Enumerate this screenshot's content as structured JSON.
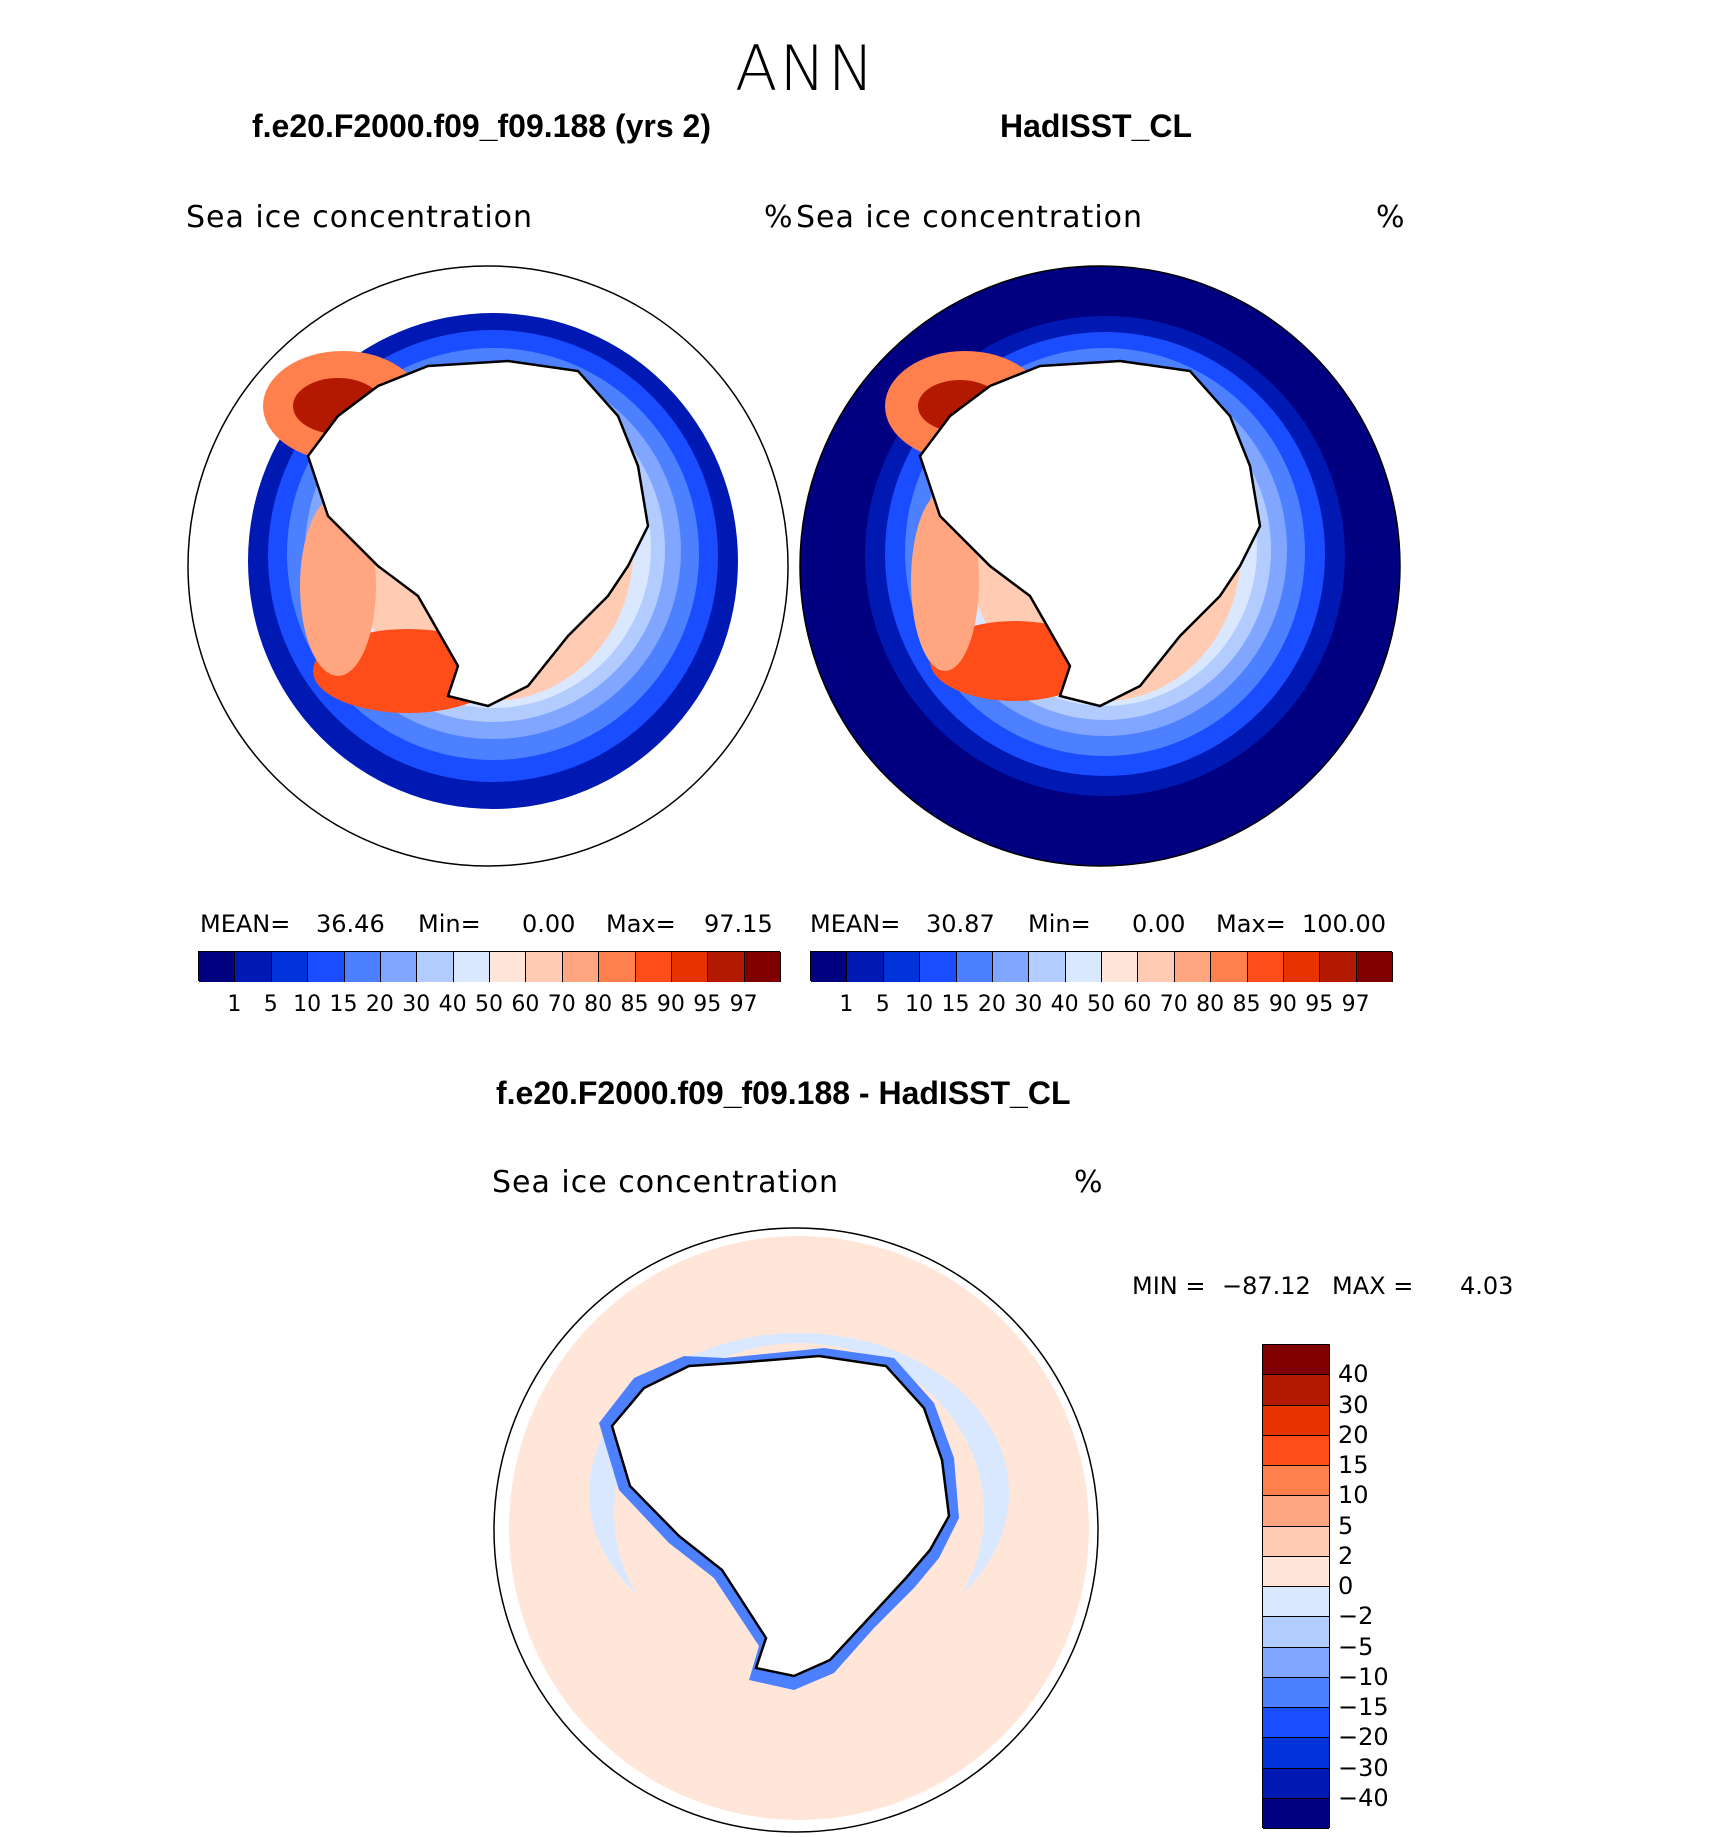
{
  "figure": {
    "season": "ANN",
    "colors": {
      "seq": [
        "#000080",
        "#0019b3",
        "#0033d9",
        "#1a4dff",
        "#4d80ff",
        "#80a6ff",
        "#b3ccff",
        "#d9e8ff",
        "#ffe6d9",
        "#ffccb3",
        "#ffa680",
        "#ff7f4d",
        "#ff4d1a",
        "#e63300",
        "#b31900",
        "#800000"
      ],
      "diff": [
        "#000080",
        "#0019b3",
        "#0033d9",
        "#1a4dff",
        "#4d80ff",
        "#80a6ff",
        "#b3ccff",
        "#d9e8ff",
        "#ffe6d9",
        "#ffccb3",
        "#ffa680",
        "#ff7f4d",
        "#ff4d1a",
        "#e63300",
        "#b31900",
        "#800000"
      ],
      "land": "#ffffff",
      "ocean_nodata": "#ffffff"
    }
  },
  "panels": [
    {
      "id": "model",
      "title": "f.e20.F2000.f09_f09.188 (yrs 2)",
      "variable": "Sea ice concentration",
      "units": "%",
      "stats": {
        "mean_label": "MEAN=",
        "mean": "36.46",
        "min_label": "Min=",
        "min": "0.00",
        "max_label": "Max=",
        "max": "97.15"
      }
    },
    {
      "id": "obs",
      "title": "HadISST_CL",
      "variable": "Sea ice concentration",
      "units": "%",
      "stats": {
        "mean_label": "MEAN=",
        "mean": "30.87",
        "min_label": "Min=",
        "min": "0.00",
        "max_label": "Max=",
        "max": "100.00"
      }
    },
    {
      "id": "diff",
      "title": "f.e20.F2000.f09_f09.188 - HadISST_CL",
      "variable": "Sea ice concentration",
      "units": "%",
      "stats": {
        "min_label": "MIN =",
        "min": "−87.12",
        "max_label": "MAX =",
        "max": "4.03"
      }
    }
  ],
  "colorbar_seq": {
    "ticks": [
      "1",
      "5",
      "10",
      "15",
      "20",
      "30",
      "40",
      "50",
      "60",
      "70",
      "80",
      "85",
      "90",
      "95",
      "97"
    ]
  },
  "colorbar_diff": {
    "ticks": [
      "40",
      "30",
      "20",
      "15",
      "10",
      "5",
      "2",
      "0",
      "−2",
      "−5",
      "−10",
      "−15",
      "−20",
      "−30",
      "−40"
    ]
  }
}
